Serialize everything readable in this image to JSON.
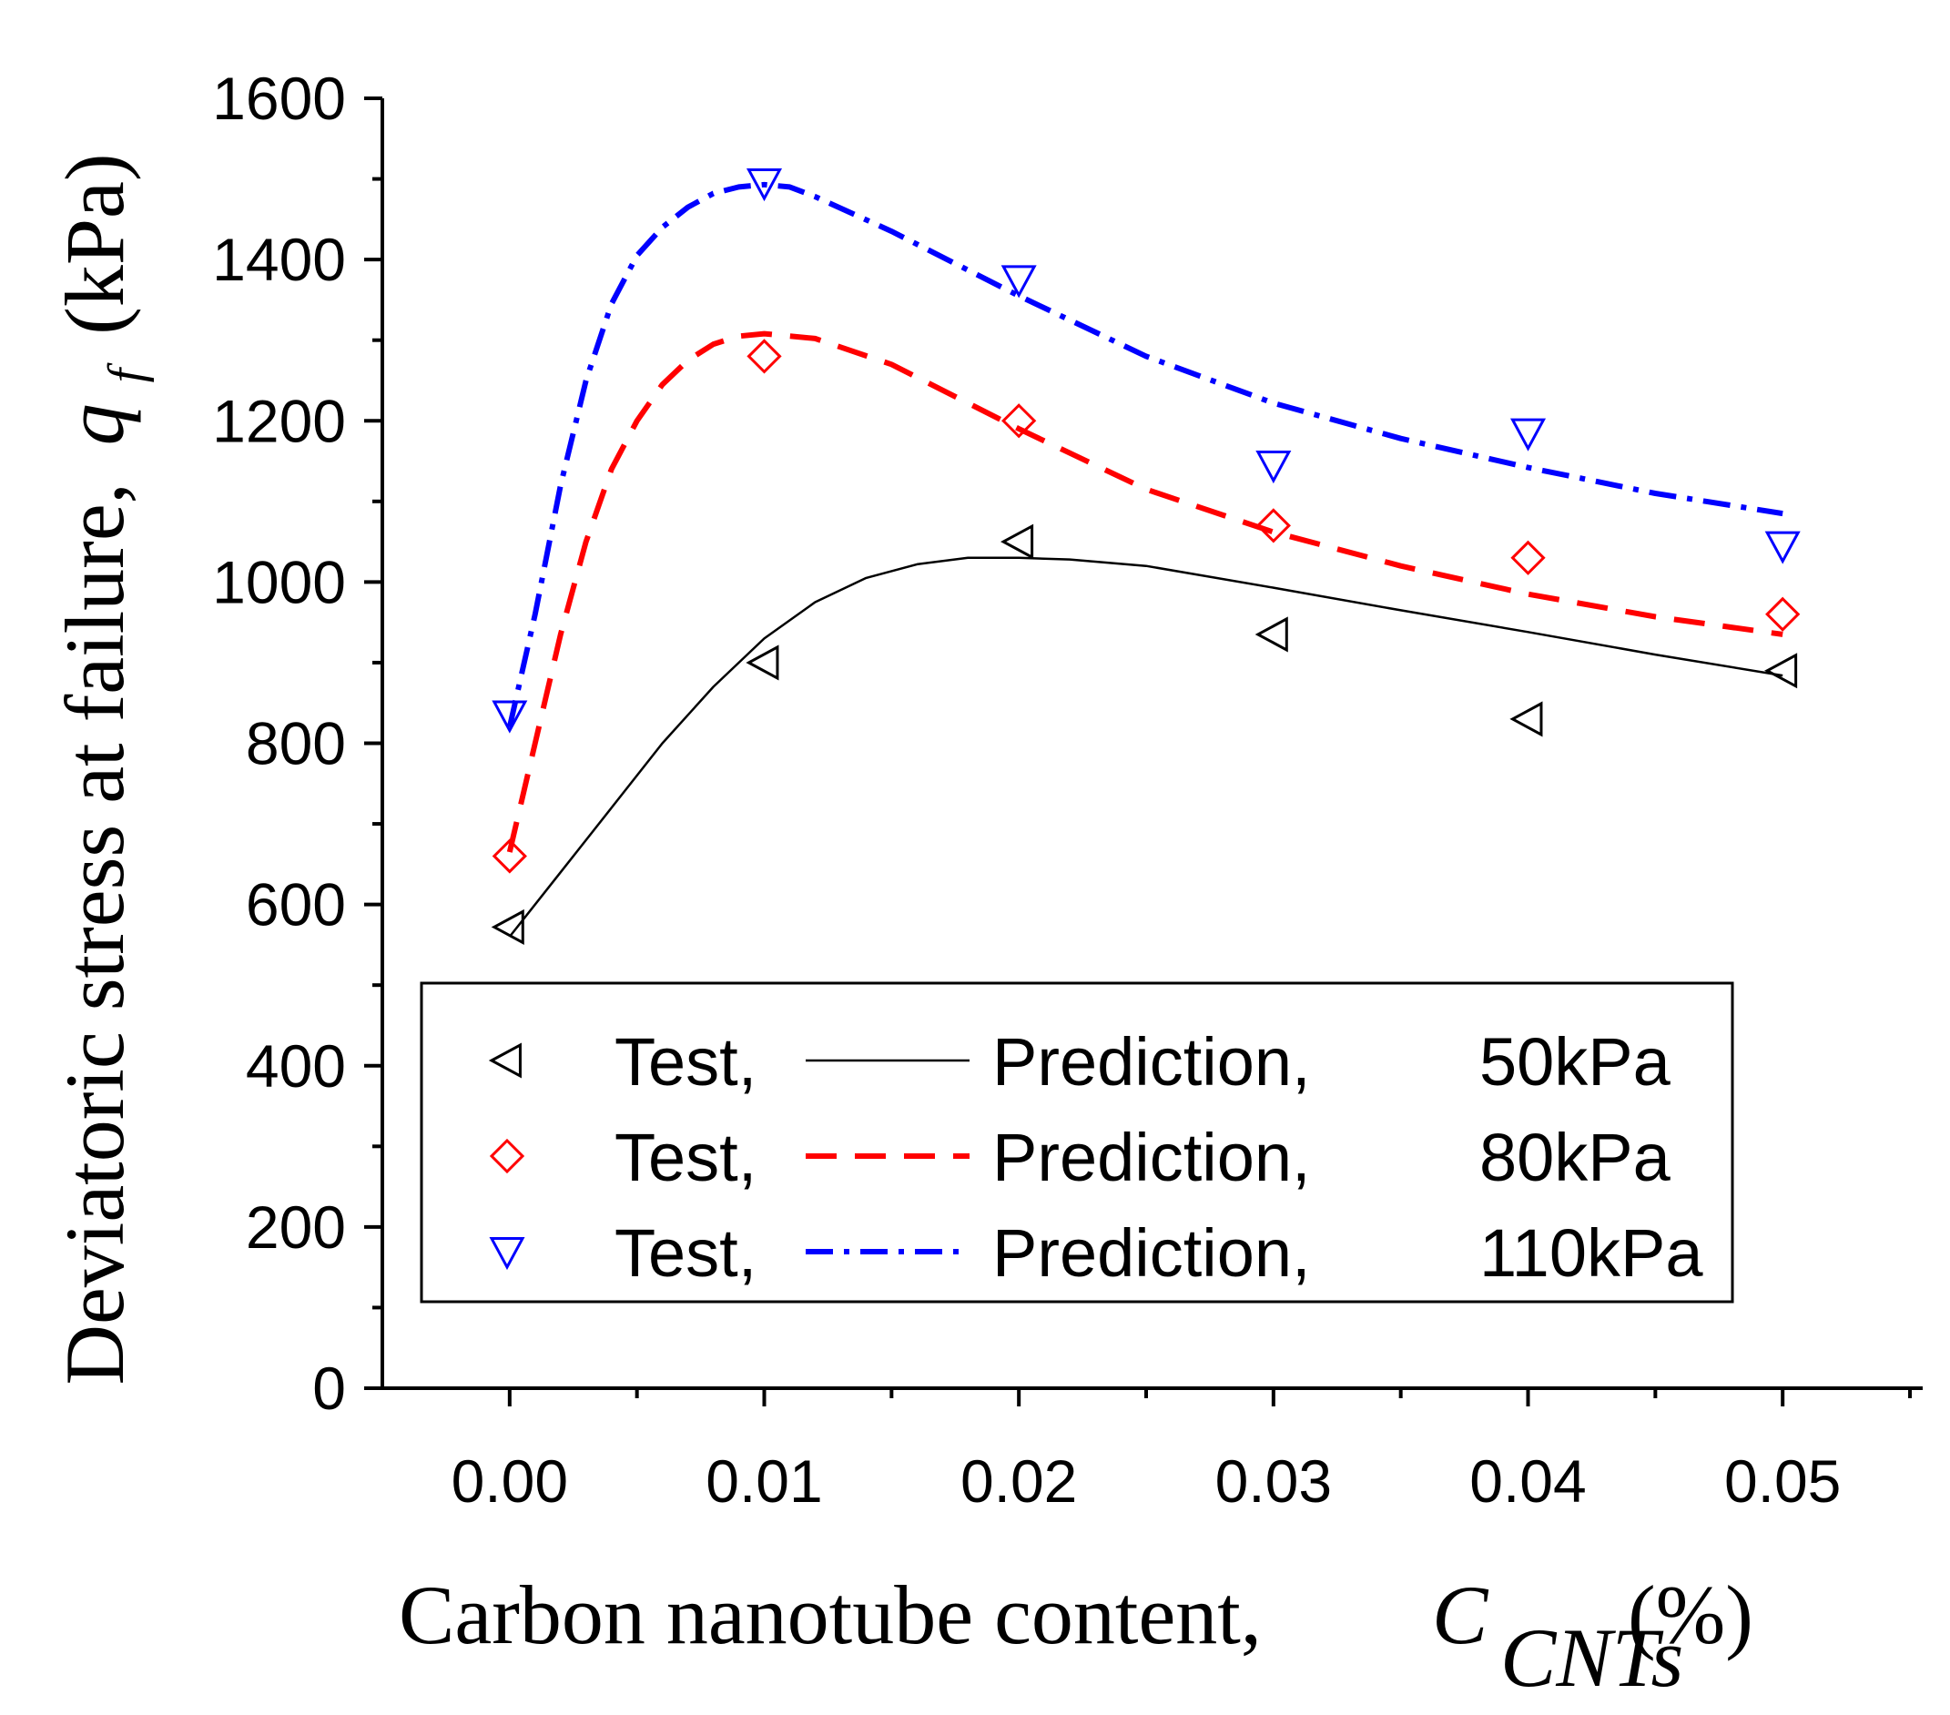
{
  "chart_data": {
    "type": "scatter",
    "xlabel": "Carbon nanotube content,",
    "xlabel_symbol": "C",
    "xlabel_subscript": "CNTs",
    "xlabel_unit": "(%)",
    "ylabel": "Deviatoric stress at failure,",
    "ylabel_symbol": "q",
    "ylabel_subscript": "f",
    "ylabel_unit": "(kPa)",
    "xlim": [
      -0.005,
      0.0555
    ],
    "ylim": [
      0,
      1600
    ],
    "x_ticks": [
      "0.00",
      "0.01",
      "0.02",
      "0.03",
      "0.04",
      "0.05"
    ],
    "x_tick_values": [
      0,
      0.01,
      0.02,
      0.03,
      0.04,
      0.05
    ],
    "y_ticks": [
      "0",
      "200",
      "400",
      "600",
      "800",
      "1000",
      "1200",
      "1400",
      "1600"
    ],
    "y_tick_values": [
      0,
      200,
      400,
      600,
      800,
      1000,
      1200,
      1400,
      1600
    ],
    "grid": false,
    "legend_position": "lower-center",
    "legend": {
      "test_word": "Test,",
      "prediction_word": "Prediction,"
    },
    "series": [
      {
        "name": "50kPa",
        "color": "#000000",
        "marker": "triangle-left",
        "line_style": "solid",
        "test_x": [
          0,
          0.01,
          0.02,
          0.03,
          0.04,
          0.05
        ],
        "test_y": [
          572,
          900,
          1050,
          935,
          830,
          890
        ],
        "pred_x": [
          0,
          0.002,
          0.004,
          0.006,
          0.008,
          0.01,
          0.012,
          0.014,
          0.016,
          0.018,
          0.02,
          0.022,
          0.025,
          0.03,
          0.035,
          0.04,
          0.045,
          0.05
        ],
        "pred_y": [
          560,
          640,
          720,
          800,
          870,
          930,
          975,
          1005,
          1022,
          1030,
          1030,
          1028,
          1020,
          993,
          965,
          938,
          910,
          884
        ]
      },
      {
        "name": "80kPa",
        "color": "#ff0000",
        "marker": "diamond",
        "line_style": "dashed",
        "test_x": [
          0,
          0.01,
          0.02,
          0.03,
          0.04,
          0.05
        ],
        "test_y": [
          660,
          1280,
          1200,
          1070,
          1030,
          960
        ],
        "pred_x": [
          0,
          0.001,
          0.002,
          0.003,
          0.004,
          0.005,
          0.006,
          0.007,
          0.008,
          0.009,
          0.01,
          0.012,
          0.015,
          0.02,
          0.025,
          0.03,
          0.035,
          0.04,
          0.045,
          0.05
        ],
        "pred_y": [
          665,
          800,
          935,
          1050,
          1140,
          1200,
          1245,
          1275,
          1295,
          1305,
          1308,
          1302,
          1270,
          1190,
          1115,
          1062,
          1020,
          985,
          957,
          935
        ]
      },
      {
        "name": "110kPa",
        "color": "#0000ff",
        "marker": "triangle-down",
        "line_style": "dashdot",
        "test_x": [
          0,
          0.01,
          0.02,
          0.03,
          0.04,
          0.05
        ],
        "test_y": [
          835,
          1495,
          1375,
          1145,
          1185,
          1045
        ],
        "pred_x": [
          0,
          0.001,
          0.002,
          0.003,
          0.004,
          0.005,
          0.006,
          0.007,
          0.008,
          0.009,
          0.01,
          0.011,
          0.012,
          0.015,
          0.02,
          0.025,
          0.03,
          0.035,
          0.04,
          0.045,
          0.05
        ],
        "pred_y": [
          820,
          960,
          1120,
          1250,
          1345,
          1405,
          1440,
          1465,
          1482,
          1490,
          1493,
          1490,
          1478,
          1435,
          1355,
          1280,
          1222,
          1178,
          1142,
          1110,
          1085
        ]
      }
    ]
  }
}
